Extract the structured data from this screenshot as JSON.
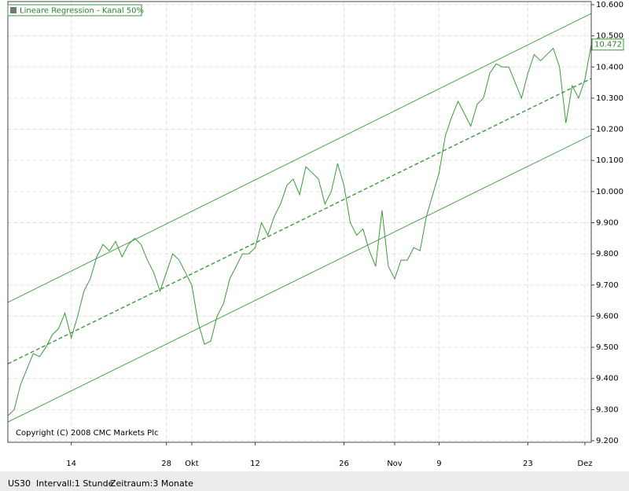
{
  "chart_data": {
    "type": "line",
    "categories": [
      null,
      null,
      null,
      null,
      null,
      null,
      null,
      null,
      null,
      null,
      "14",
      null,
      null,
      null,
      null,
      null,
      null,
      null,
      null,
      null,
      null,
      null,
      null,
      null,
      null,
      "28",
      null,
      null,
      null,
      "Okt",
      null,
      null,
      null,
      null,
      null,
      null,
      null,
      null,
      null,
      "12",
      null,
      null,
      null,
      null,
      null,
      null,
      null,
      null,
      null,
      null,
      null,
      null,
      null,
      "26",
      null,
      null,
      null,
      null,
      null,
      null,
      null,
      "Nov",
      null,
      null,
      null,
      null,
      null,
      null,
      "9",
      null,
      null,
      null,
      null,
      null,
      null,
      null,
      null,
      null,
      null,
      null,
      null,
      null,
      "23",
      null,
      null,
      null,
      null,
      null,
      null,
      null,
      null,
      "Dez",
      null
    ],
    "series": [
      {
        "name": "US30",
        "color": "#3a9a3a",
        "values": [
          9280,
          9300,
          9380,
          9430,
          9480,
          9470,
          9500,
          9540,
          9560,
          9610,
          9530,
          9600,
          9680,
          9720,
          9790,
          9830,
          9810,
          9840,
          9790,
          9830,
          9850,
          9830,
          9780,
          9740,
          9680,
          9740,
          9800,
          9780,
          9740,
          9700,
          9580,
          9510,
          9520,
          9600,
          9640,
          9720,
          9760,
          9800,
          9800,
          9820,
          9900,
          9860,
          9920,
          9960,
          10020,
          10040,
          9990,
          10080,
          10060,
          10040,
          9960,
          10000,
          10090,
          10020,
          9900,
          9860,
          9880,
          9810,
          9760,
          9940,
          9760,
          9720,
          9780,
          9780,
          9820,
          9810,
          9920,
          9990,
          10060,
          10180,
          10240,
          10290,
          10250,
          10210,
          10280,
          10300,
          10380,
          10410,
          10400,
          10400,
          10350,
          10300,
          10380,
          10440,
          10420,
          10440,
          10460,
          10400,
          10220,
          10340,
          10300,
          10360,
          10472
        ]
      }
    ],
    "ylim": [
      9200,
      10600
    ],
    "yticks": [
      {
        "value": 9200,
        "label": "9.200"
      },
      {
        "value": 9300,
        "label": "9.300"
      },
      {
        "value": 9400,
        "label": "9.400"
      },
      {
        "value": 9500,
        "label": "9.500"
      },
      {
        "value": 9600,
        "label": "9.600"
      },
      {
        "value": 9700,
        "label": "9.700"
      },
      {
        "value": 9800,
        "label": "9.800"
      },
      {
        "value": 9900,
        "label": "9.900"
      },
      {
        "value": 10000,
        "label": "10.000"
      },
      {
        "value": 10100,
        "label": "10.100"
      },
      {
        "value": 10200,
        "label": "10.200"
      },
      {
        "value": 10300,
        "label": "10.300"
      },
      {
        "value": 10400,
        "label": "10.400"
      },
      {
        "value": 10500,
        "label": "10.500"
      },
      {
        "value": 10600,
        "label": "10.600"
      }
    ],
    "grid": true,
    "last_value": {
      "value": 10472,
      "label": "10.472"
    },
    "channel": {
      "label": "Lineare Regression - Kanal 50%",
      "color": "#3a9a3a",
      "upper": [
        9644,
        10572
      ],
      "middle": [
        9447,
        10363
      ],
      "lower": [
        9260,
        10181
      ]
    },
    "copyright": "Copyright (C) 2008 CMC Markets Plc"
  },
  "footer": {
    "symbol": "US30",
    "interval": "Intervall:1 Stunde",
    "period": "Zeitraum:3 Monate"
  }
}
